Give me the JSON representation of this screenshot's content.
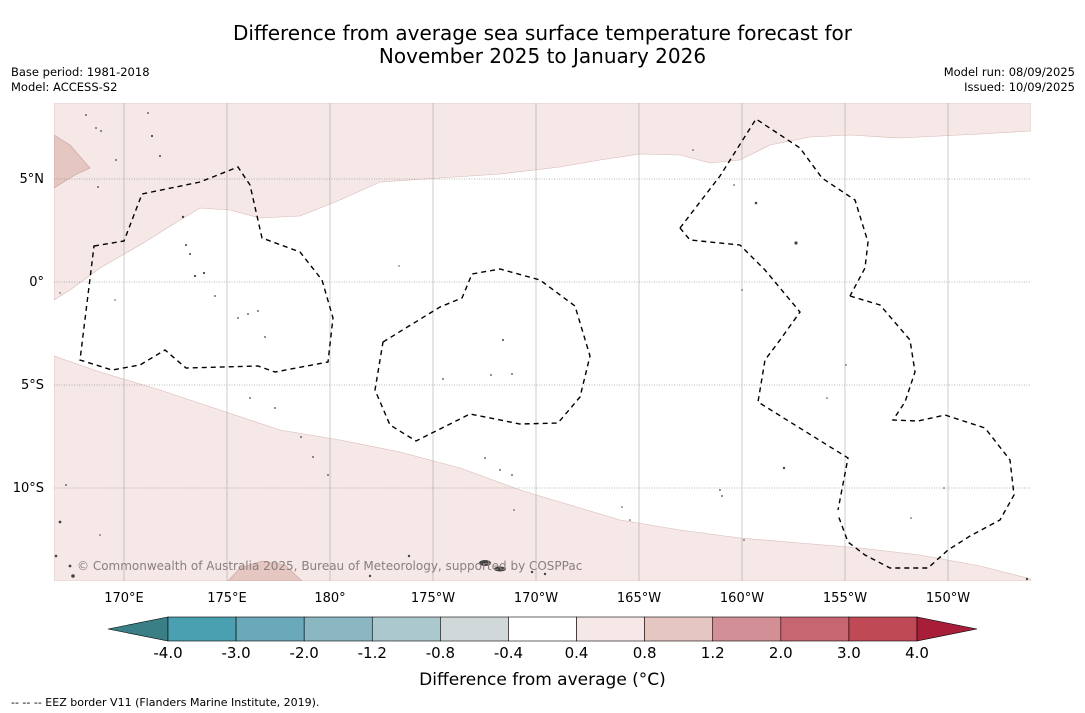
{
  "title_line1": "Difference from average sea surface temperature forecast for",
  "title_line2": "November 2025 to January 2026",
  "meta_left": {
    "base_period": "Base period: 1981-2018",
    "model": "Model: ACCESS-S2"
  },
  "meta_right": {
    "model_run": "Model run: 08/09/2025",
    "issued": "Issued: 10/09/2025"
  },
  "map": {
    "lat_labels": [
      "5°N",
      "0°",
      "5°S",
      "10°S"
    ],
    "lon_labels": [
      "170°E",
      "175°E",
      "180°",
      "175°W",
      "170°W",
      "165°W",
      "160°W",
      "155°W",
      "150°W"
    ],
    "copyright": "© Commonwealth of Australia 2025, Bureau of Meteorology, supported by COSPPac",
    "colors": {
      "anomaly_0_4_0_8": "#f5e8e6",
      "anomaly_0_8_1_2": "#e6c6c1",
      "land": "#444444"
    }
  },
  "colorbar": {
    "ticks": [
      "-4.0",
      "-3.0",
      "-2.0",
      "-1.2",
      "-0.8",
      "-0.4",
      "0.4",
      "0.8",
      "1.2",
      "2.0",
      "3.0",
      "4.0"
    ],
    "colors": [
      "#3b7f86",
      "#4aa0b0",
      "#6aa9b9",
      "#8ab7c2",
      "#abc8cc",
      "#d1d8da",
      "#ffffff",
      "#f5e8e6",
      "#e6c6c1",
      "#d38f96",
      "#c76670",
      "#bf4955",
      "#a81e38"
    ],
    "label": "Difference from average (°C)"
  },
  "footnote": "--  --  -- EEZ border V11 (Flanders Marine Institute, 2019)."
}
